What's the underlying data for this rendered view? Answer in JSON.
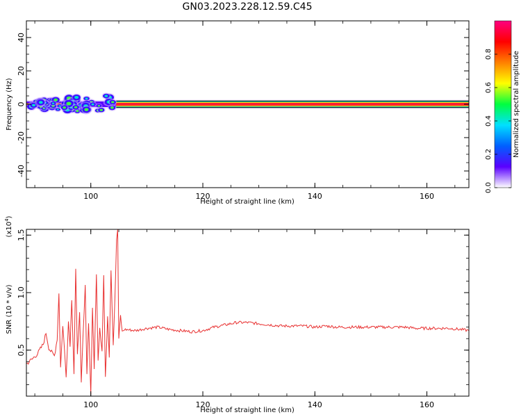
{
  "title": "GN03.2023.228.12.59.C45",
  "chart_data": [
    {
      "type": "heatmap",
      "xlabel": "Height of straight line (km)",
      "ylabel": "Frequency (Hz)",
      "xlim": [
        88.5,
        167.5
      ],
      "ylim": [
        -50,
        50
      ],
      "xticks": [
        100,
        120,
        140,
        160
      ],
      "yticks": [
        -40,
        -20,
        0,
        20,
        40
      ],
      "xtick_labels": [
        "100",
        "120",
        "140",
        "160"
      ],
      "ytick_labels": [
        "-40",
        "-20",
        "0",
        "20",
        "40"
      ],
      "colorbar": {
        "label": "Normalized spectral amplitude",
        "range": [
          0,
          1
        ],
        "ticks": [
          0.0,
          0.2,
          0.4,
          0.6,
          0.8
        ],
        "tick_labels": [
          "0.0",
          "0.2",
          "0.4",
          "0.6",
          "0.8"
        ],
        "colormap": [
          "#ffffff",
          "#5a00ff",
          "#0060ff",
          "#00e0ff",
          "#00ff40",
          "#ffff00",
          "#ff8000",
          "#ff0000",
          "#ff0080"
        ]
      },
      "description_band": {
        "frequency_hz": 0,
        "segments": [
          {
            "x_range": [
              88.5,
              104.5
            ],
            "spread_hz": 6,
            "character": "noisy"
          },
          {
            "x_range": [
              104.5,
              167.5
            ],
            "spread_hz": 1.5,
            "character": "steady"
          }
        ]
      }
    },
    {
      "type": "line",
      "xlabel": "Height of straight line (km)",
      "ylabel": "SNR (10 * v/v)",
      "scale_note_base": "(x10",
      "scale_note_exp": "4",
      "scale_note_tail": ")",
      "xlim": [
        88.5,
        167.5
      ],
      "ylim": [
        0.1,
        1.55
      ],
      "xticks": [
        100,
        120,
        140,
        160
      ],
      "yticks": [
        0.5,
        1.0,
        1.5
      ],
      "xtick_labels": [
        "100",
        "120",
        "140",
        "160"
      ],
      "ytick_labels": [
        "0.5",
        "1.0",
        "1.5"
      ],
      "color": "#e83030",
      "x": [
        88.5,
        89.5,
        90.5,
        91.5,
        92.0,
        92.5,
        93.0,
        93.5,
        94.0,
        94.3,
        94.6,
        95.0,
        95.3,
        95.6,
        96.0,
        96.3,
        96.6,
        97.0,
        97.3,
        97.6,
        98.0,
        98.3,
        98.6,
        99.0,
        99.3,
        99.6,
        100.0,
        100.3,
        100.6,
        101.0,
        101.3,
        101.6,
        102.0,
        102.3,
        102.6,
        103.0,
        103.3,
        103.6,
        104.0,
        104.3,
        104.6,
        104.8,
        105.0,
        105.3,
        105.6,
        106.0,
        108,
        110,
        112,
        114,
        116,
        118,
        120,
        122,
        124,
        126,
        128,
        130,
        132,
        134,
        136,
        138,
        140,
        142,
        144,
        146,
        148,
        150,
        152,
        154,
        156,
        158,
        160,
        162,
        164,
        166,
        167.5
      ],
      "y": [
        0.38,
        0.42,
        0.47,
        0.55,
        0.65,
        0.52,
        0.48,
        0.45,
        0.6,
        1.0,
        0.35,
        0.72,
        0.5,
        0.28,
        0.75,
        0.55,
        0.95,
        0.3,
        1.2,
        0.45,
        0.85,
        0.2,
        0.6,
        1.05,
        0.3,
        0.75,
        0.12,
        0.85,
        0.35,
        1.15,
        0.42,
        0.7,
        0.5,
        1.15,
        0.25,
        0.8,
        0.45,
        1.2,
        0.55,
        0.95,
        1.45,
        1.55,
        0.6,
        0.8,
        0.66,
        0.68,
        0.67,
        0.69,
        0.7,
        0.68,
        0.67,
        0.66,
        0.67,
        0.7,
        0.72,
        0.74,
        0.74,
        0.73,
        0.72,
        0.71,
        0.71,
        0.71,
        0.7,
        0.71,
        0.7,
        0.7,
        0.7,
        0.7,
        0.7,
        0.7,
        0.7,
        0.69,
        0.69,
        0.69,
        0.69,
        0.68,
        0.67
      ]
    }
  ]
}
